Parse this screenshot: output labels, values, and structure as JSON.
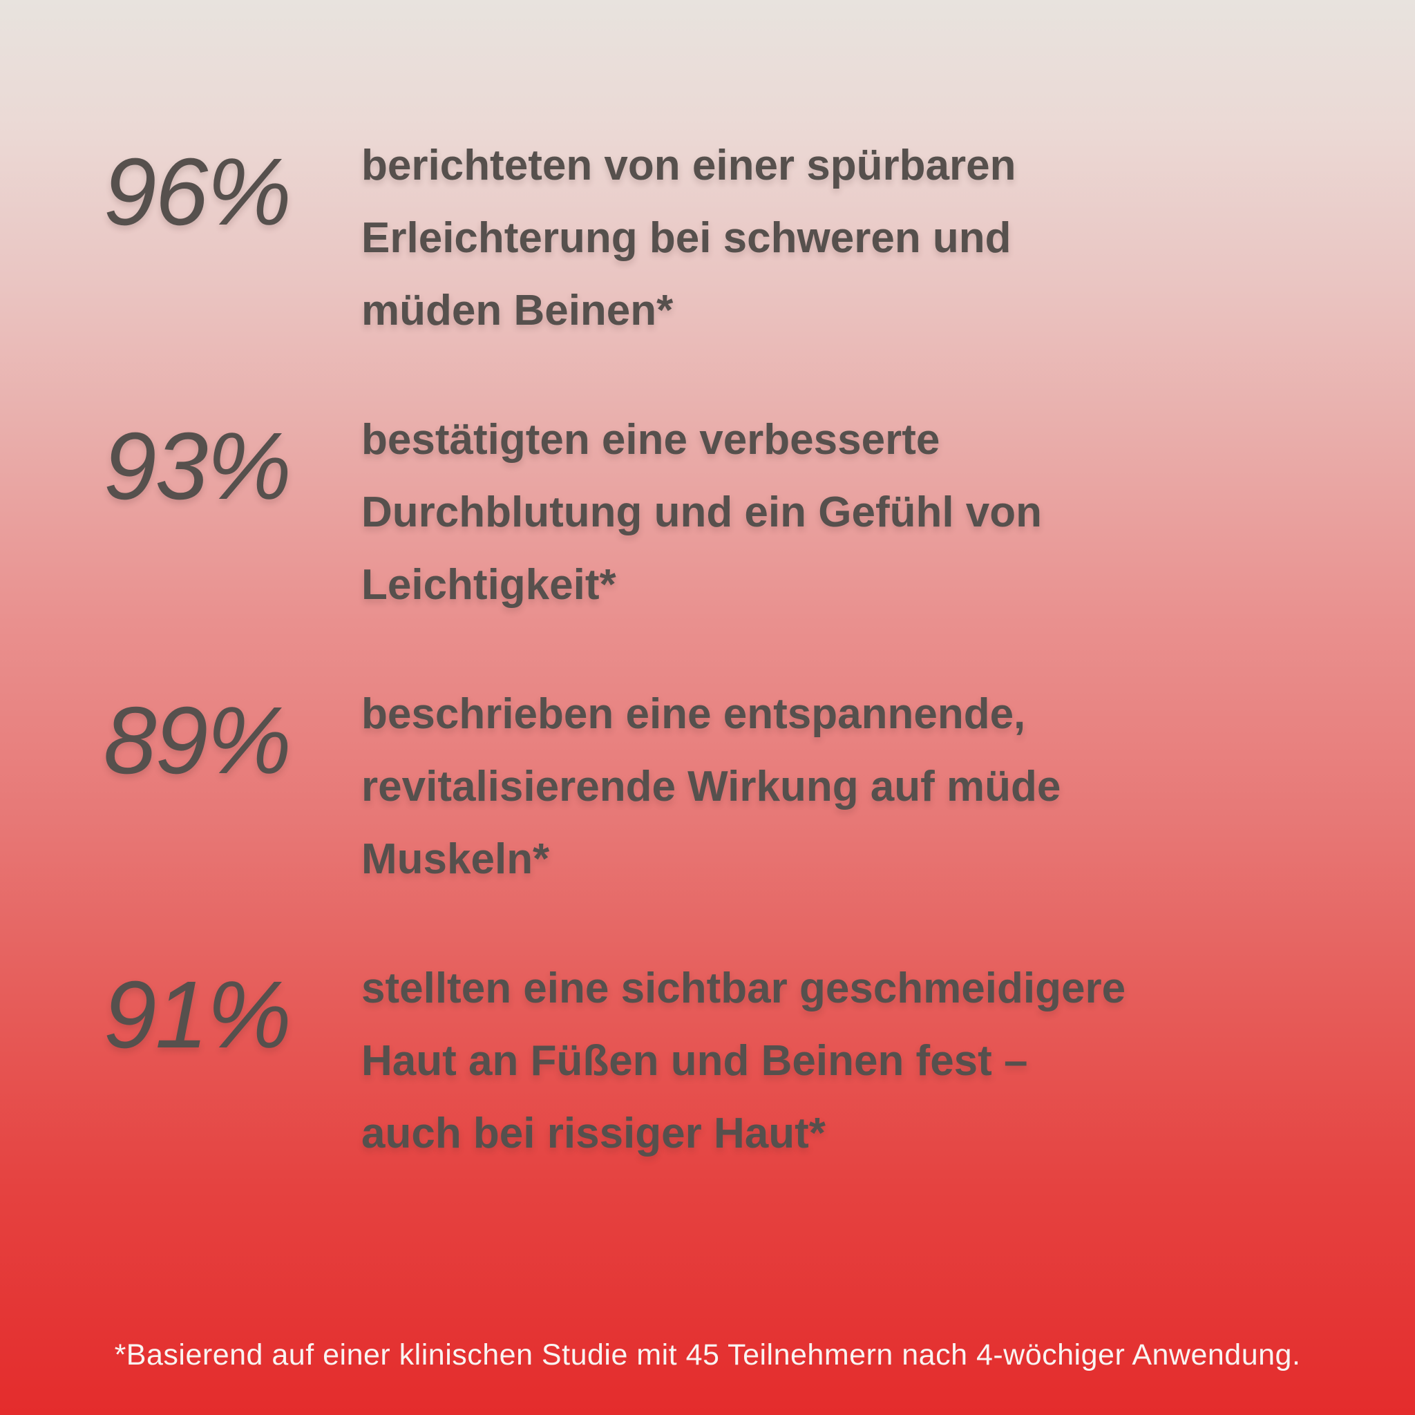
{
  "page": {
    "background": {
      "gradient_top": "#e8e3de",
      "gradient_middle": "#e9908e",
      "gradient_bottom": "#e42c2c"
    },
    "text_color": "#56504d",
    "footnote_color": "#f9f4f2"
  },
  "stats": [
    {
      "percent": "96%",
      "lines": [
        "berichteten von einer spürbaren",
        "Erleichterung bei schweren und",
        "müden Beinen*"
      ]
    },
    {
      "percent": "93%",
      "lines": [
        "bestätigten eine verbesserte",
        "Durchblutung und ein Gefühl von",
        "Leichtigkeit*"
      ]
    },
    {
      "percent": "89%",
      "lines": [
        "beschrieben eine entspannende,",
        "revitalisierende Wirkung auf müde",
        "Muskeln*"
      ]
    },
    {
      "percent": "91%",
      "lines": [
        "stellten eine sichtbar geschmeidigere",
        "Haut an Füßen und Beinen fest –",
        "auch bei rissiger Haut*"
      ]
    }
  ],
  "footnote": {
    "text": "*Basierend auf einer klinischen Studie mit 45 Teilnehmern nach 4-wöchiger Anwendung."
  }
}
